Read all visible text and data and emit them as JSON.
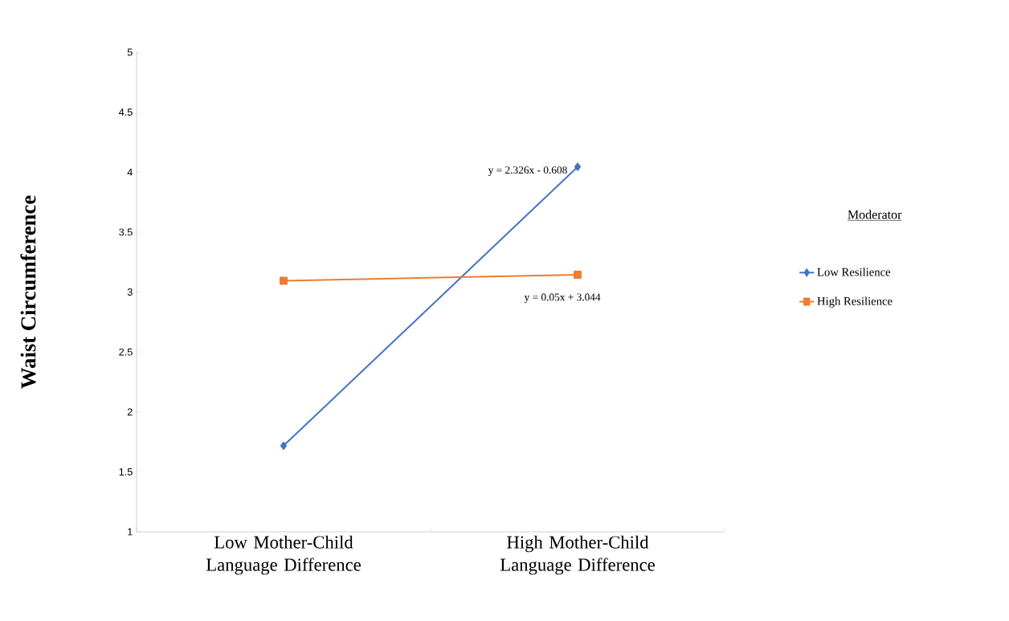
{
  "chart_data": {
    "type": "line",
    "categories": [
      "Low Mother-Child Language Difference",
      "High Mother-Child Language Difference"
    ],
    "ylabel": "Waist Circumference",
    "legend_title": "Moderator",
    "series": [
      {
        "name": "Low Resilience",
        "color": "#4472c4",
        "marker": "diamond",
        "values": [
          1.718,
          4.044
        ]
      },
      {
        "name": "High Resilience",
        "color": "#ed7d31",
        "marker": "square",
        "values": [
          3.094,
          3.144
        ]
      }
    ],
    "ylim": [
      1,
      5
    ],
    "yticks": [
      1,
      1.5,
      2,
      2.5,
      3,
      3.5,
      4,
      4.5,
      5
    ],
    "annotations": [
      {
        "text": "y = 2.326x - 0.608",
        "x": "High Mother-Child Language Difference",
        "y": 4.044
      },
      {
        "text": "y = 0.05x + 3.044",
        "x": "High Mother-Child Language Difference",
        "y": 3.144
      }
    ],
    "legend": "right",
    "grid": false,
    "line_style": "solid"
  }
}
